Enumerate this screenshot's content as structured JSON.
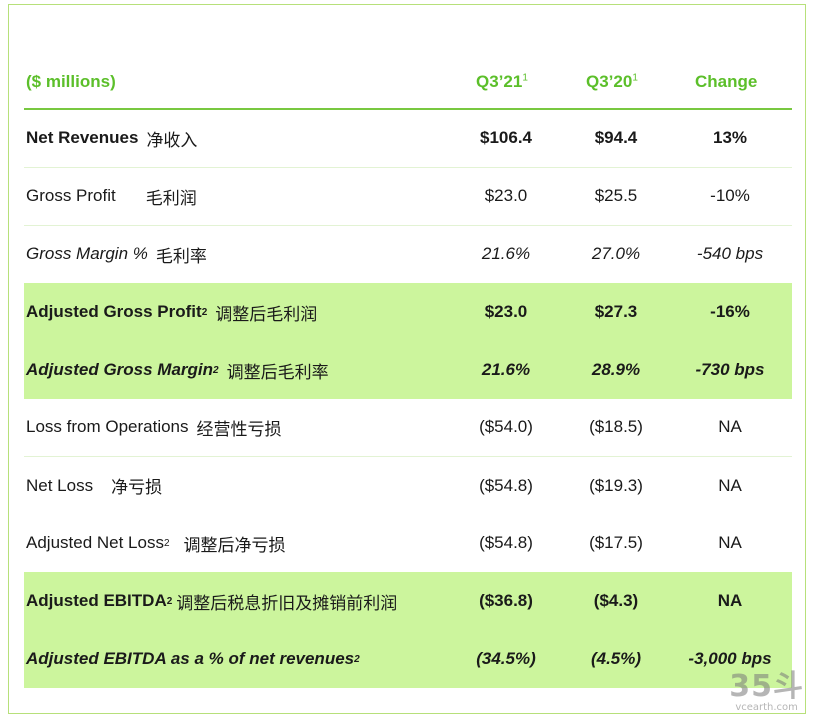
{
  "header": {
    "unit": "($ millions)",
    "col1": "Q3’21",
    "col1_sup": "1",
    "col2": "Q3’20",
    "col2_sup": "1",
    "col3": "Change"
  },
  "rows": [
    {
      "label": "Net Revenues",
      "sup": "",
      "cn": "净收入",
      "v1": "$106.4",
      "v2": "$94.4",
      "v3": "13%"
    },
    {
      "label": "Gross Profit",
      "sup": "",
      "cn": "毛利润",
      "v1": "$23.0",
      "v2": "$25.5",
      "v3": "-10%"
    },
    {
      "label": "Gross Margin %",
      "sup": "",
      "cn": "毛利率",
      "v1": "21.6%",
      "v2": "27.0%",
      "v3": "-540 bps"
    },
    {
      "label": "Adjusted Gross Profit",
      "sup": "2",
      "cn": "调整后毛利润",
      "v1": "$23.0",
      "v2": "$27.3",
      "v3": "-16%"
    },
    {
      "label": "Adjusted Gross Margin",
      "sup": "2",
      "cn": "调整后毛利率",
      "v1": "21.6%",
      "v2": "28.9%",
      "v3": "-730 bps"
    },
    {
      "label": "Loss from Operations",
      "sup": "",
      "cn": "经营性亏损",
      "v1": "($54.0)",
      "v2": "($18.5)",
      "v3": "NA"
    },
    {
      "label": "Net Loss",
      "sup": "",
      "cn": "净亏损",
      "v1": "($54.8)",
      "v2": "($19.3)",
      "v3": "NA"
    },
    {
      "label": "Adjusted Net Loss",
      "sup": "2",
      "cn": "调整后净亏损",
      "v1": "($54.8)",
      "v2": "($17.5)",
      "v3": "NA"
    },
    {
      "label": "Adjusted EBITDA",
      "sup": "2",
      "cn": "调整后税息折旧及摊销前利润",
      "v1": "($36.8)",
      "v2": "($4.3)",
      "v3": "NA"
    },
    {
      "label": "Adjusted EBITDA as a % of net revenues",
      "sup": "2",
      "cn": "",
      "v1": "(34.5%)",
      "v2": "(4.5%)",
      "v3": "-3,000 bps"
    }
  ],
  "watermark": {
    "big": "35斗",
    "small": "vcearth.com"
  },
  "colors": {
    "accent_green": "#5cbf2a",
    "highlight_bg": "#ccf59d",
    "rule_green": "#78c840"
  }
}
